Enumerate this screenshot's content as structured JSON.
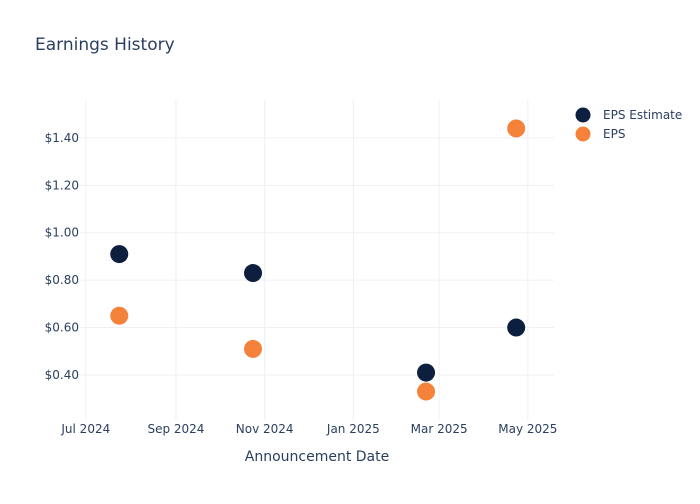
{
  "chart_data": {
    "type": "scatter",
    "title": "Earnings History",
    "xlabel": "Announcement Date",
    "ylabel": "",
    "x_ticks": [
      "Jul 2024",
      "Sep 2024",
      "Nov 2024",
      "Jan 2025",
      "Mar 2025",
      "May 2025"
    ],
    "x_tick_dates": [
      "2024-07-01",
      "2024-09-01",
      "2024-11-01",
      "2025-01-01",
      "2025-03-01",
      "2025-05-01"
    ],
    "y_ticks": [
      "$0.40",
      "$0.60",
      "$0.80",
      "$1.00",
      "$1.20",
      "$1.40"
    ],
    "y_tick_values": [
      0.4,
      0.6,
      0.8,
      1.0,
      1.2,
      1.4
    ],
    "xlim": [
      "2024-06-27",
      "2025-05-19"
    ],
    "ylim": [
      0.21,
      1.56
    ],
    "grid": true,
    "legend_position": "top-right",
    "series": [
      {
        "name": "EPS Estimate",
        "color": "#0d1f3f",
        "points": [
          {
            "x": "2024-07-24",
            "y": 0.91
          },
          {
            "x": "2024-10-24",
            "y": 0.83
          },
          {
            "x": "2025-02-20",
            "y": 0.41
          },
          {
            "x": "2025-04-23",
            "y": 0.6
          }
        ]
      },
      {
        "name": "EPS",
        "color": "#f4823a",
        "points": [
          {
            "x": "2024-07-24",
            "y": 0.65
          },
          {
            "x": "2024-10-24",
            "y": 0.51
          },
          {
            "x": "2025-02-20",
            "y": 0.33
          },
          {
            "x": "2025-04-23",
            "y": 1.44
          }
        ]
      }
    ]
  }
}
